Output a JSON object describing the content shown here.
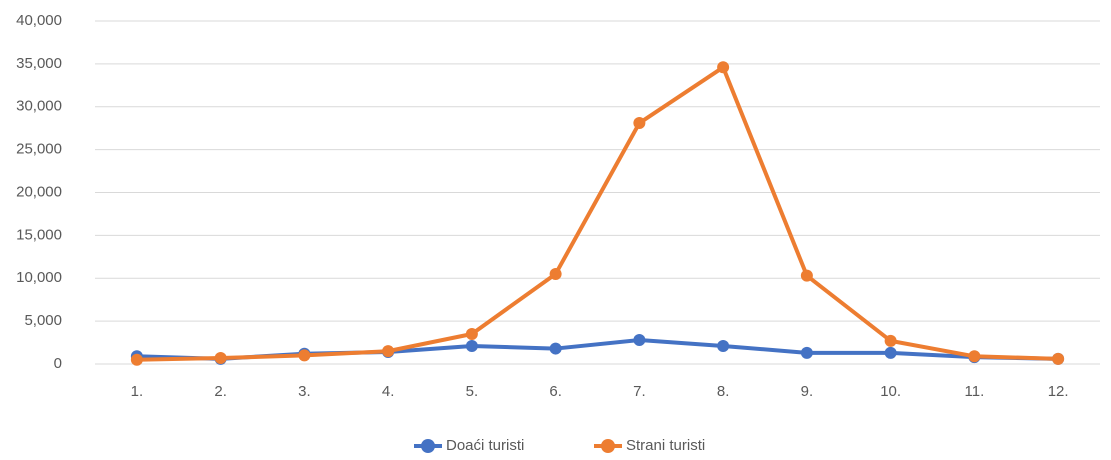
{
  "chart_data": {
    "type": "line",
    "categories": [
      "1.",
      "2.",
      "3.",
      "4.",
      "5.",
      "6.",
      "7.",
      "8.",
      "9.",
      "10.",
      "11.",
      "12."
    ],
    "series": [
      {
        "name": "Doaći turisti",
        "color": "#4472c4",
        "values": [
          900,
          600,
          1200,
          1400,
          2100,
          1800,
          2800,
          2100,
          1300,
          1300,
          800,
          600
        ]
      },
      {
        "name": "Strani turisti",
        "color": "#ed7d31",
        "values": [
          500,
          700,
          1000,
          1500,
          3500,
          10500,
          28100,
          34600,
          10300,
          2700,
          900,
          600
        ]
      }
    ],
    "ylim": [
      0,
      40000
    ],
    "yticks": [
      0,
      {
        "value": 5000,
        "label": "5,000"
      },
      {
        "value": 10000,
        "label": "10,000"
      },
      {
        "value": 15000,
        "label": "15,000"
      },
      {
        "value": 20000,
        "label": "20,000"
      },
      {
        "value": 25000,
        "label": "25,000"
      },
      {
        "value": 30000,
        "label": "30,000"
      },
      {
        "value": 35000,
        "label": "35,000"
      },
      {
        "value": 40000,
        "label": "40,000"
      }
    ],
    "grid": true,
    "legend": "bottom"
  }
}
